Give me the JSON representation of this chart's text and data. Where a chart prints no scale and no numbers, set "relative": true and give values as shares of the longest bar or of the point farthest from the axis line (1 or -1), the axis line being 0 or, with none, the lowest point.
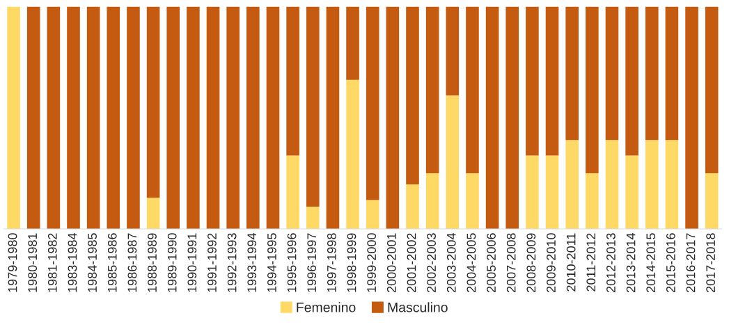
{
  "chart_data": {
    "type": "bar",
    "stacked": true,
    "relative": true,
    "legend": "bottom",
    "grid": false,
    "categories": [
      "1979-1980",
      "1980-1981",
      "1981-1982",
      "1983-1984",
      "1984-1985",
      "1985-1986",
      "1986-1987",
      "1988-1989",
      "1989-1990",
      "1990-1991",
      "1991-1992",
      "1992-1993",
      "1993-1994",
      "1994-1995",
      "1995-1996",
      "1996-1997",
      "1997-1998",
      "1998-1999",
      "1999-2000",
      "2000-2001",
      "2001-2002",
      "2002-2003",
      "2003-2004",
      "2004-2005",
      "2005-2006",
      "2007-2008",
      "2008-2009",
      "2009-2010",
      "2010-2011",
      "2011-2012",
      "2012-2013",
      "2013-2014",
      "2014-2015",
      "2015-2016",
      "2016-2017",
      "2017-2018"
    ],
    "series": [
      {
        "name": "Femenino",
        "color": "#ffd966",
        "values": [
          1,
          0,
          0,
          0,
          0,
          0,
          0,
          0.14,
          0,
          0,
          0,
          0,
          0,
          0,
          0.33,
          0.1,
          0,
          0.67,
          0.13,
          0,
          0.2,
          0.25,
          0.6,
          0.25,
          0,
          0,
          0.33,
          0.33,
          0.4,
          0.25,
          0.4,
          0.33,
          0.4,
          0.4,
          0,
          0.25
        ]
      },
      {
        "name": "Masculino",
        "color": "#c55a11",
        "values": [
          0,
          1,
          1,
          1,
          1,
          1,
          1,
          0.86,
          1,
          1,
          1,
          1,
          1,
          1,
          0.67,
          0.9,
          1,
          0.33,
          0.87,
          1,
          0.8,
          0.75,
          0.4,
          0.75,
          1,
          1,
          0.67,
          0.67,
          0.6,
          0.75,
          0.6,
          0.67,
          0.6,
          0.6,
          1,
          0.75
        ]
      }
    ]
  }
}
